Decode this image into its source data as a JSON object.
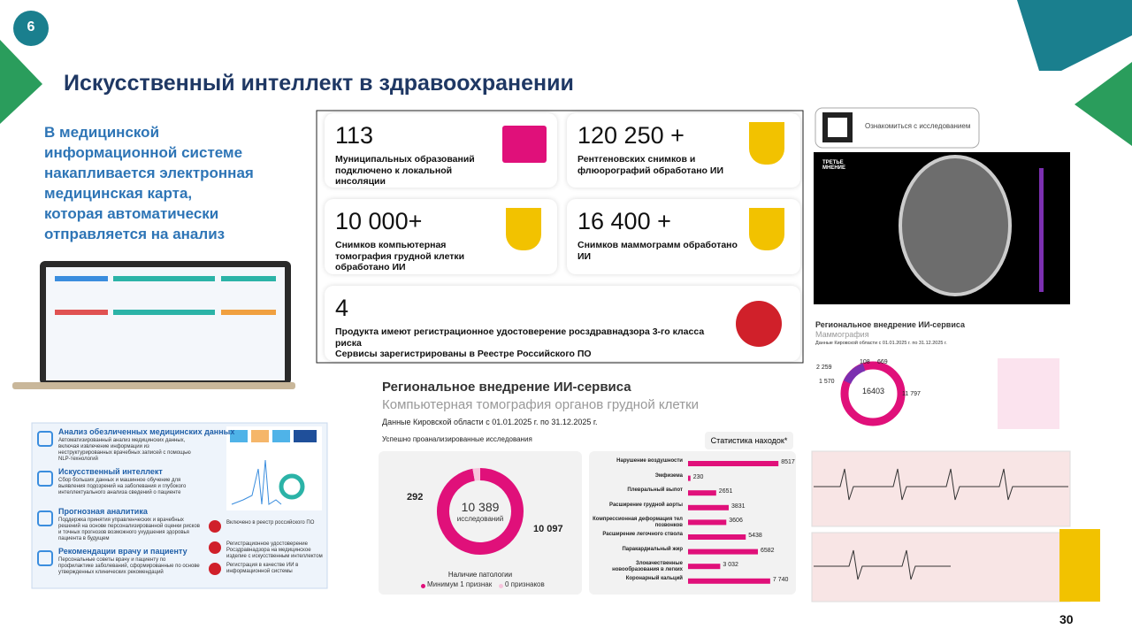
{
  "slide_number": "6",
  "title": "Искусственный интеллект в здравоохранении",
  "intro_lines": [
    "В медицинской",
    "информационной системе",
    "накапливается электронная",
    "медицинская карта,",
    "которая автоматически",
    "отправляется на анализ"
  ],
  "stats": [
    {
      "number": "113",
      "lines": [
        "Муниципальных образований подключено к локальной инсоляции"
      ]
    },
    {
      "number": "120 250 +",
      "lines": [
        "Рентгеновских снимков и флюорографий обработано ИИ"
      ]
    },
    {
      "number": "10 000+",
      "lines": [
        "Снимков компьютерная томография грудной клетки обработано ИИ"
      ]
    },
    {
      "number": "16 400 +",
      "lines": [
        "Снимков маммограмм обработано ИИ"
      ]
    },
    {
      "number": "4",
      "lines": [
        "Продукта имеют регистрационное удостоверение росздравнадзора 3-го класса риска",
        "Сервисы зарегистрированы в Реестре Российского ПО"
      ]
    }
  ],
  "features": [
    {
      "title": "Анализ обезличенных медицинских данных",
      "text": "Автоматизированный анализ медицинских данных, включая извлечение информации из неструктурированных врачебных записей с помощью NLP-технологий"
    },
    {
      "title": "Искусственный интеллект",
      "text": "Сбор больших данных и машинное обучение для выявления подозрений на заболевания и глубокого интеллектуального анализа сведений о пациенте"
    },
    {
      "title": "Прогнозная аналитика",
      "text": "Поддержка принятия управленческих и врачебных решений на основе персонализированной оценки рисков и точных прогнозов возможного ухудшения здоровья пациента в будущем"
    },
    {
      "title": "Рекомендации врачу и пациенту",
      "text": "Персональные советы врачу и пациенту по профилактике заболеваний, сформированные по основе утвержденных клинических рекомендаций"
    }
  ],
  "registries": [
    "Включено в реестр российского ПО",
    "Регистрационное удостоверение Росздравнадзора на медицинское изделие с искусственным интеллектом",
    "Регистрация в качестве ИИ в информационной системы"
  ],
  "ct": {
    "title": "Региональное внедрение ИИ-сервиса",
    "subtitle": "Компьютерная томография органов грудной клетки",
    "period": "Данные Кировской области с 01.01.2025 г. по 31.12.2025 г.",
    "donut_caption": "Успешно проанализированные исследования",
    "center_value": "10 389",
    "center_label": "исследований",
    "legend_title": "Наличие патологии",
    "segments": [
      {
        "name": "Минимум 1 признак",
        "value": 10097,
        "label": "10 097",
        "color": "#e0107a"
      },
      {
        "name": "0 признаков",
        "value": 292,
        "label": "292",
        "color": "#f7c4dc"
      }
    ],
    "bars_title": "Статистика находок*",
    "bar_color": "#e0107a",
    "categories": [
      "Нарушение воздушности",
      "Эмфизема",
      "Плевральный выпот",
      "Расширение грудной аорты",
      "Компрессионная деформация тел позвонков",
      "Расширение легочного ствола",
      "Паракардиальный жир",
      "Злокачественные новообразования в легких",
      "Коронарный кальций"
    ],
    "values": [
      8517,
      230,
      2651,
      3831,
      3606,
      5438,
      6582,
      3032,
      7740
    ],
    "value_labels": [
      "8517",
      "230",
      "2651",
      "3831",
      "3606",
      "5438",
      "6582",
      "3 032",
      "7 740"
    ]
  },
  "qr_caption": "Ознакомиться с исследованием",
  "brand": "ТРЕТЬЕ МНЕНИЕ",
  "mammo": {
    "title": "Региональное внедрение ИИ-сервиса",
    "subtitle": "Маммография",
    "period": "Данные Кировской области с 01.01.2025 г. по 31.12.2025 г.",
    "numbers": [
      "2 259",
      "108",
      "669",
      "1 570",
      "16403",
      "11 797"
    ]
  },
  "page_number": "30"
}
